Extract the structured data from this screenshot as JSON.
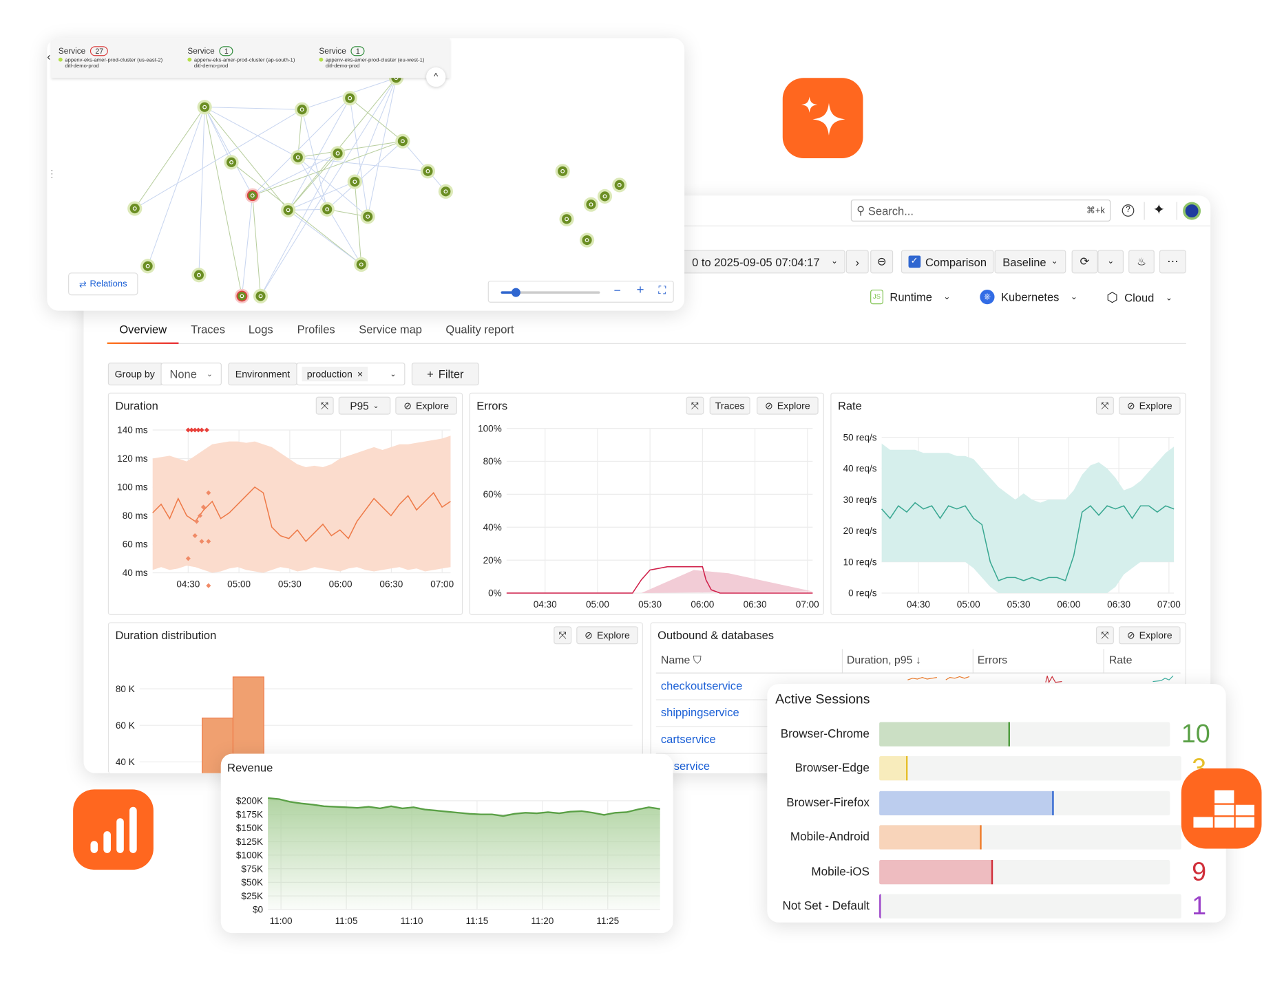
{
  "topology": {
    "clusters": [
      {
        "label": "Service",
        "count": "27",
        "count_color": "#d93a3a",
        "name": "appenv-eks-amer-prod-cluster (us-east-2)",
        "sub": "ditl-demo-prod"
      },
      {
        "label": "Service",
        "count": "1",
        "count_color": "#2e8b3a",
        "name": "appenv-eks-amer-prod-cluster (ap-south-1)",
        "sub": "ditl-demo-prod"
      },
      {
        "label": "Service",
        "count": "1",
        "count_color": "#2e8b3a",
        "name": "appenv-eks-amer-prod-cluster (eu-west-1)",
        "sub": "ditl-demo-prod"
      }
    ],
    "relations_label": "Relations",
    "zoom_fraction": 0.15
  },
  "header": {
    "search_placeholder": "Search...",
    "search_shortcut": "⌘+k"
  },
  "toolbar": {
    "time_range": "0 to 2025-09-05 07:04:17",
    "comparison_label": "Comparison",
    "comparison_checked": true,
    "baseline_label": "Baseline"
  },
  "facets": [
    {
      "label": "Runtime"
    },
    {
      "label": "Kubernetes"
    },
    {
      "label": "Cloud"
    }
  ],
  "tabs": [
    "Overview",
    "Traces",
    "Logs",
    "Profiles",
    "Service map",
    "Quality report"
  ],
  "active_tab": "Overview",
  "filters": {
    "group_by_label": "Group by",
    "group_by_value": "None",
    "env_label": "Environment",
    "env_value": "production",
    "filter_label": "Filter"
  },
  "panels": {
    "duration": {
      "title": "Duration",
      "percentile": "P95",
      "explore": "Explore"
    },
    "errors": {
      "title": "Errors",
      "traces": "Traces",
      "explore": "Explore"
    },
    "rate": {
      "title": "Rate",
      "explore": "Explore"
    },
    "distribution": {
      "title": "Duration distribution",
      "explore": "Explore"
    },
    "outbound": {
      "title": "Outbound & databases",
      "explore": "Explore",
      "columns": [
        "Name",
        "Duration, p95",
        "Errors",
        "Rate"
      ],
      "rows": [
        "checkoutservice",
        "shippingservice",
        "cartservice",
        "service"
      ]
    }
  },
  "sessions": {
    "title": "Active Sessions",
    "items": [
      {
        "label": "Browser-Chrome",
        "value": "10",
        "fraction": 0.45,
        "fill": "#cbdfc4",
        "edge": "#4a9a3a",
        "color": "#5aa046"
      },
      {
        "label": "Browser-Edge",
        "value": "3",
        "fraction": 0.094,
        "fill": "#f8ecbc",
        "edge": "#e6bf2a",
        "color": "#e6bf2a"
      },
      {
        "label": "Browser-Firefox",
        "value": null,
        "fraction": 0.6,
        "fill": "#bccdee",
        "edge": "#2f66d0",
        "color": "#2f66d0"
      },
      {
        "label": "Mobile-Android",
        "value": null,
        "fraction": 0.34,
        "fill": "#f8d4ba",
        "edge": "#ee7a28",
        "color": "#ee7a28"
      },
      {
        "label": "Mobile-iOS",
        "value": "9",
        "fraction": 0.39,
        "fill": "#eebcc0",
        "edge": "#d02f3a",
        "color": "#d02f3a"
      },
      {
        "label": "Not Set - Default",
        "value": "1",
        "fraction": 0.0,
        "fill": "#e8d4f0",
        "edge": "#9a40c8",
        "color": "#9a40c8"
      }
    ]
  },
  "colors": {
    "accent": "#ff671f",
    "link": "#1a5fd6"
  },
  "chart_data": [
    {
      "id": "duration",
      "type": "line",
      "title": "Duration",
      "ylabel": "ms",
      "ylim": [
        40,
        140
      ],
      "yticks": [
        40,
        60,
        80,
        100,
        120,
        140
      ],
      "ytick_labels": [
        "40 ms",
        "60 ms",
        "80 ms",
        "100 ms",
        "120 ms",
        "140 ms"
      ],
      "xticks": [
        "04:30",
        "05:00",
        "05:30",
        "06:00",
        "06:30",
        "07:00"
      ],
      "x_range": [
        "04:09",
        "07:05"
      ],
      "series": [
        {
          "name": "p95",
          "values": [
            82,
            88,
            78,
            92,
            80,
            76,
            84,
            90,
            78,
            82,
            88,
            94,
            100,
            96,
            72,
            66,
            64,
            70,
            62,
            68,
            74,
            66,
            70,
            64,
            76,
            84,
            92,
            86,
            80,
            88,
            94,
            84,
            90,
            96,
            86,
            90
          ]
        }
      ],
      "band": {
        "lo": [
          42,
          44,
          42,
          43,
          45,
          44,
          42,
          40,
          41,
          43,
          44,
          42,
          41,
          40,
          42,
          44,
          43,
          41,
          42,
          44,
          43,
          42,
          41,
          43,
          44,
          42,
          41,
          42,
          43,
          44,
          42,
          43,
          41,
          42,
          43,
          44
        ],
        "hi": [
          120,
          121,
          122,
          120,
          118,
          122,
          126,
          130,
          131,
          132,
          132,
          131,
          132,
          130,
          128,
          124,
          120,
          116,
          114,
          115,
          114,
          116,
          120,
          122,
          124,
          126,
          128,
          126,
          128,
          130,
          130,
          131,
          132,
          133,
          134,
          136
        ]
      },
      "outliers": [
        [
          "04:30",
          140
        ],
        [
          "04:32",
          140
        ],
        [
          "04:34",
          140
        ],
        [
          "04:36",
          140
        ],
        [
          "04:38",
          140
        ],
        [
          "04:41",
          140
        ],
        [
          "04:42",
          96
        ],
        [
          "04:39",
          86
        ],
        [
          "04:37",
          80
        ],
        [
          "04:35",
          76
        ],
        [
          "04:34",
          66
        ],
        [
          "04:38",
          62
        ],
        [
          "04:42",
          62
        ],
        [
          "04:30",
          50
        ],
        [
          "04:42",
          31
        ]
      ]
    },
    {
      "id": "errors",
      "type": "line",
      "title": "Errors",
      "ylim": [
        0,
        100
      ],
      "yticks": [
        0,
        20,
        40,
        60,
        80,
        100
      ],
      "ytick_labels": [
        "0%",
        "20%",
        "40%",
        "60%",
        "80%",
        "100%"
      ],
      "xticks": [
        "04:30",
        "05:00",
        "05:30",
        "06:00",
        "06:30",
        "07:00"
      ],
      "x_range": [
        "04:08",
        "07:03"
      ],
      "points": [
        [
          "04:08",
          0
        ],
        [
          "05:20",
          0
        ],
        [
          "05:25",
          8
        ],
        [
          "05:30",
          14
        ],
        [
          "05:40",
          16
        ],
        [
          "06:00",
          16
        ],
        [
          "06:02",
          8
        ],
        [
          "06:05",
          2
        ],
        [
          "06:10",
          0
        ],
        [
          "07:03",
          0
        ]
      ],
      "comparison": [
        [
          "05:25",
          0
        ],
        [
          "05:55",
          14
        ],
        [
          "06:15",
          12
        ],
        [
          "07:03",
          1
        ]
      ]
    },
    {
      "id": "rate",
      "type": "line",
      "title": "Rate",
      "ylim": [
        0,
        50
      ],
      "yticks": [
        0,
        10,
        20,
        30,
        40,
        50
      ],
      "ytick_labels": [
        "0 req/s",
        "10 req/s",
        "20 req/s",
        "30 req/s",
        "40 req/s",
        "50 req/s"
      ],
      "xticks": [
        "04:30",
        "05:00",
        "05:30",
        "06:00",
        "06:30",
        "07:00"
      ],
      "x_range": [
        "04:08",
        "07:03"
      ],
      "series": [
        {
          "name": "rate",
          "values": [
            27,
            24,
            28,
            26,
            29,
            27,
            28,
            24,
            28,
            27,
            28,
            24,
            22,
            10,
            4,
            5,
            5,
            4,
            5,
            4,
            5,
            5,
            4,
            12,
            26,
            28,
            25,
            28,
            27,
            28,
            24,
            28,
            28,
            26,
            28,
            27
          ]
        }
      ],
      "band": {
        "lo": [
          10,
          10,
          10,
          10,
          10,
          10,
          10,
          10,
          10,
          10,
          10,
          8,
          5,
          2,
          0,
          0,
          0,
          0,
          0,
          0,
          0,
          0,
          0,
          0,
          0,
          0,
          0,
          0,
          2,
          6,
          8,
          10,
          10,
          10,
          10,
          10
        ],
        "hi": [
          48,
          46,
          46,
          46,
          46,
          45,
          45,
          45,
          45,
          44,
          44,
          43,
          40,
          37,
          34,
          32,
          30,
          32,
          30,
          29,
          30,
          30,
          30,
          33,
          38,
          41,
          42,
          40,
          37,
          33,
          34,
          36,
          39,
          42,
          45,
          47
        ]
      }
    },
    {
      "id": "distribution",
      "type": "bar",
      "title": "Duration distribution",
      "yticks": [
        40000,
        60000,
        80000
      ],
      "ytick_labels": [
        "40 K",
        "60 K",
        "80 K"
      ],
      "values": [
        64000,
        86500
      ]
    },
    {
      "id": "revenue",
      "type": "area",
      "title": "Revenue",
      "ylim": [
        0,
        200
      ],
      "yticks": [
        0,
        25,
        50,
        75,
        100,
        125,
        150,
        175,
        200
      ],
      "ytick_labels": [
        "$0",
        "$25K",
        "$50K",
        "$75K",
        "$100K",
        "$125K",
        "$150K",
        "$175K",
        "$200K"
      ],
      "xticks": [
        "11:00",
        "11:05",
        "11:10",
        "11:15",
        "11:20",
        "11:25"
      ],
      "x_range": [
        "10:59",
        "11:29"
      ],
      "series": [
        {
          "name": "Revenue ($K)",
          "values": [
            205,
            203,
            198,
            195,
            193,
            190,
            189,
            188,
            187,
            189,
            186,
            190,
            186,
            188,
            184,
            182,
            180,
            178,
            176,
            175,
            175,
            172,
            176,
            178,
            177,
            179,
            177,
            180,
            181,
            178,
            174,
            178,
            179,
            184,
            188,
            185
          ]
        }
      ]
    }
  ]
}
